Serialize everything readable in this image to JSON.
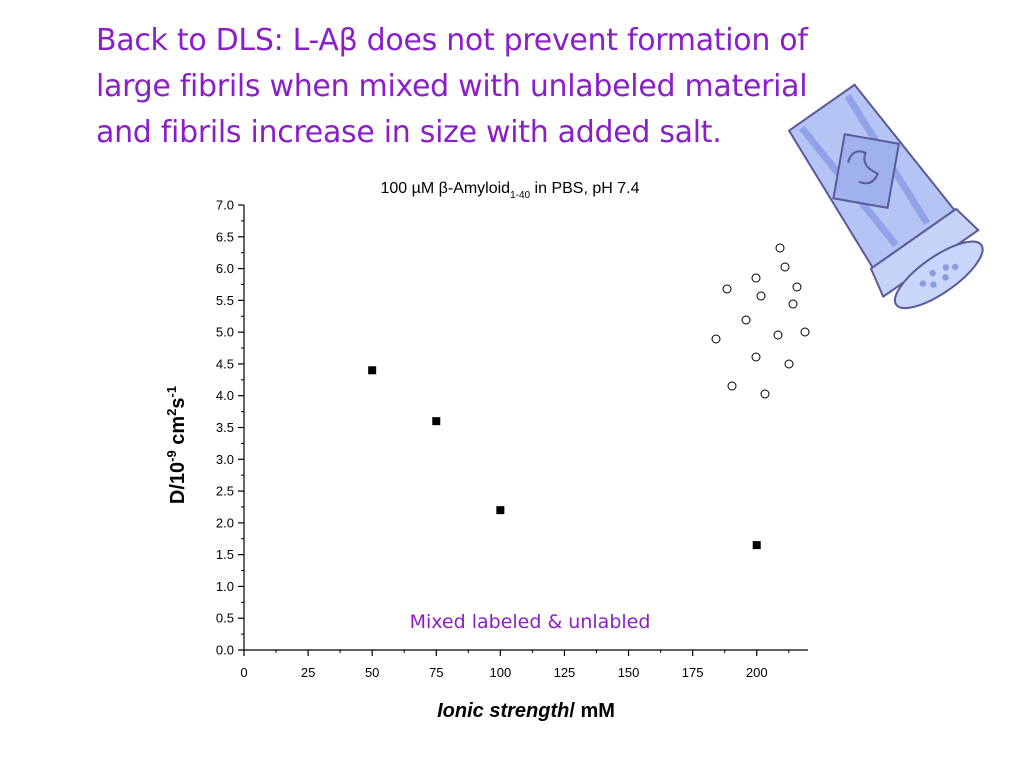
{
  "slide": {
    "title_lines": [
      "Back to DLS: L-Aβ does not prevent formation of",
      "large fibrils when mixed with unlabeled material",
      "and fibrils increase in size with added salt."
    ],
    "title_color": "#8a1fc9"
  },
  "chart_data": {
    "type": "scatter",
    "title_parts": {
      "prefix": "100 µM β-Amyloid",
      "subscript": "1-40",
      "suffix": " in PBS, pH 7.4"
    },
    "xlabel_parts": {
      "italic": "Ionic strength",
      "normal": "/ mM"
    },
    "ylabel_parts": {
      "base": "D/10",
      "sup1": "-9",
      "mid": " cm",
      "sup2": "2",
      "end": "s",
      "sup3": "-1"
    },
    "xlim": [
      0,
      220
    ],
    "ylim": [
      0,
      7.0
    ],
    "x_ticks": [
      "0",
      "25",
      "50",
      "75",
      "100",
      "125",
      "150",
      "175",
      "200"
    ],
    "y_ticks": [
      "0.0",
      "0.5",
      "1.0",
      "1.5",
      "2.0",
      "2.5",
      "3.0",
      "3.5",
      "4.0",
      "4.5",
      "5.0",
      "5.5",
      "6.0",
      "6.5",
      "7.0"
    ],
    "series": [
      {
        "marker": "filled-square",
        "color": "#000000",
        "points": [
          {
            "x": 50,
            "y": 4.4
          },
          {
            "x": 75,
            "y": 3.6
          },
          {
            "x": 100,
            "y": 2.2
          },
          {
            "x": 200,
            "y": 1.65
          }
        ]
      }
    ],
    "annotation": "Mixed labeled & unlabled",
    "annotation_color": "#8a1fc9",
    "grid": false,
    "legend": "none"
  },
  "illustration": {
    "name": "salt-shaker-icon",
    "body_color": "#b4c4f5",
    "outline_color": "#5a5a9a"
  }
}
